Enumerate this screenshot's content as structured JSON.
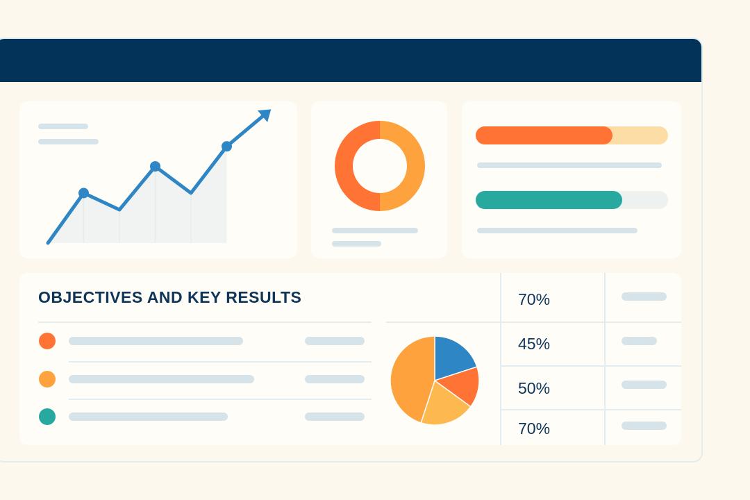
{
  "colors": {
    "header": "#04335a",
    "accent_blue": "#2f86c4",
    "orange": "#ff7335",
    "light_orange": "#fda23c",
    "teal": "#27a9a0",
    "yellow": "#fdb94f"
  },
  "line_card": {
    "icon": "trend-up-arrow-icon",
    "points": [
      0,
      1.5,
      1.0,
      2.3,
      1.5,
      2.9,
      3.8
    ]
  },
  "donut_card": {
    "segments": [
      {
        "value": 50,
        "color": "#ff7335"
      },
      {
        "value": 50,
        "color": "#fda23c"
      }
    ]
  },
  "progress_card": {
    "bars": [
      {
        "progress": 0.71,
        "fill": "#ff7335",
        "track": "#fddda6"
      },
      {
        "progress": 0.76,
        "fill": "#27a9a0",
        "track": "#edf2f1"
      }
    ]
  },
  "okr": {
    "title": "OBJECTIVES AND KEY RESULTS",
    "items": [
      {
        "dot_color": "#ff7335"
      },
      {
        "dot_color": "#fda23c"
      },
      {
        "dot_color": "#27a9a0"
      }
    ],
    "pie": [
      {
        "value": 20,
        "color": "#2f86c4"
      },
      {
        "value": 15,
        "color": "#ff7335"
      },
      {
        "value": 20,
        "color": "#fdb94f"
      },
      {
        "value": 45,
        "color": "#fda23c"
      }
    ],
    "percentages": [
      "70%",
      "45%",
      "50%",
      "70%"
    ]
  }
}
